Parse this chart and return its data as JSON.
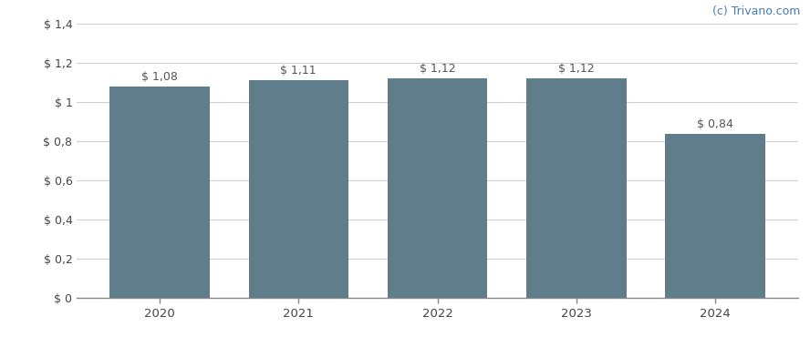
{
  "categories": [
    "2020",
    "2021",
    "2022",
    "2023",
    "2024"
  ],
  "values": [
    1.08,
    1.11,
    1.12,
    1.12,
    0.84
  ],
  "bar_color": "#607d8b",
  "bar_labels": [
    "$ 1,08",
    "$ 1,11",
    "$ 1,12",
    "$ 1,12",
    "$ 0,84"
  ],
  "ylim": [
    0,
    1.4
  ],
  "yticks": [
    0,
    0.2,
    0.4,
    0.6,
    0.8,
    1.0,
    1.2,
    1.4
  ],
  "ytick_labels": [
    "$ 0",
    "$ 0,2",
    "$ 0,4",
    "$ 0,6",
    "$ 0,8",
    "$ 1",
    "$ 1,2",
    "$ 1,4"
  ],
  "background_color": "#ffffff",
  "grid_color": "#d0d0d0",
  "watermark": "(c) Trivano.com",
  "watermark_color": "#4a7ab5",
  "label_color": "#444444",
  "bar_label_color": "#555555",
  "bar_width": 0.72
}
